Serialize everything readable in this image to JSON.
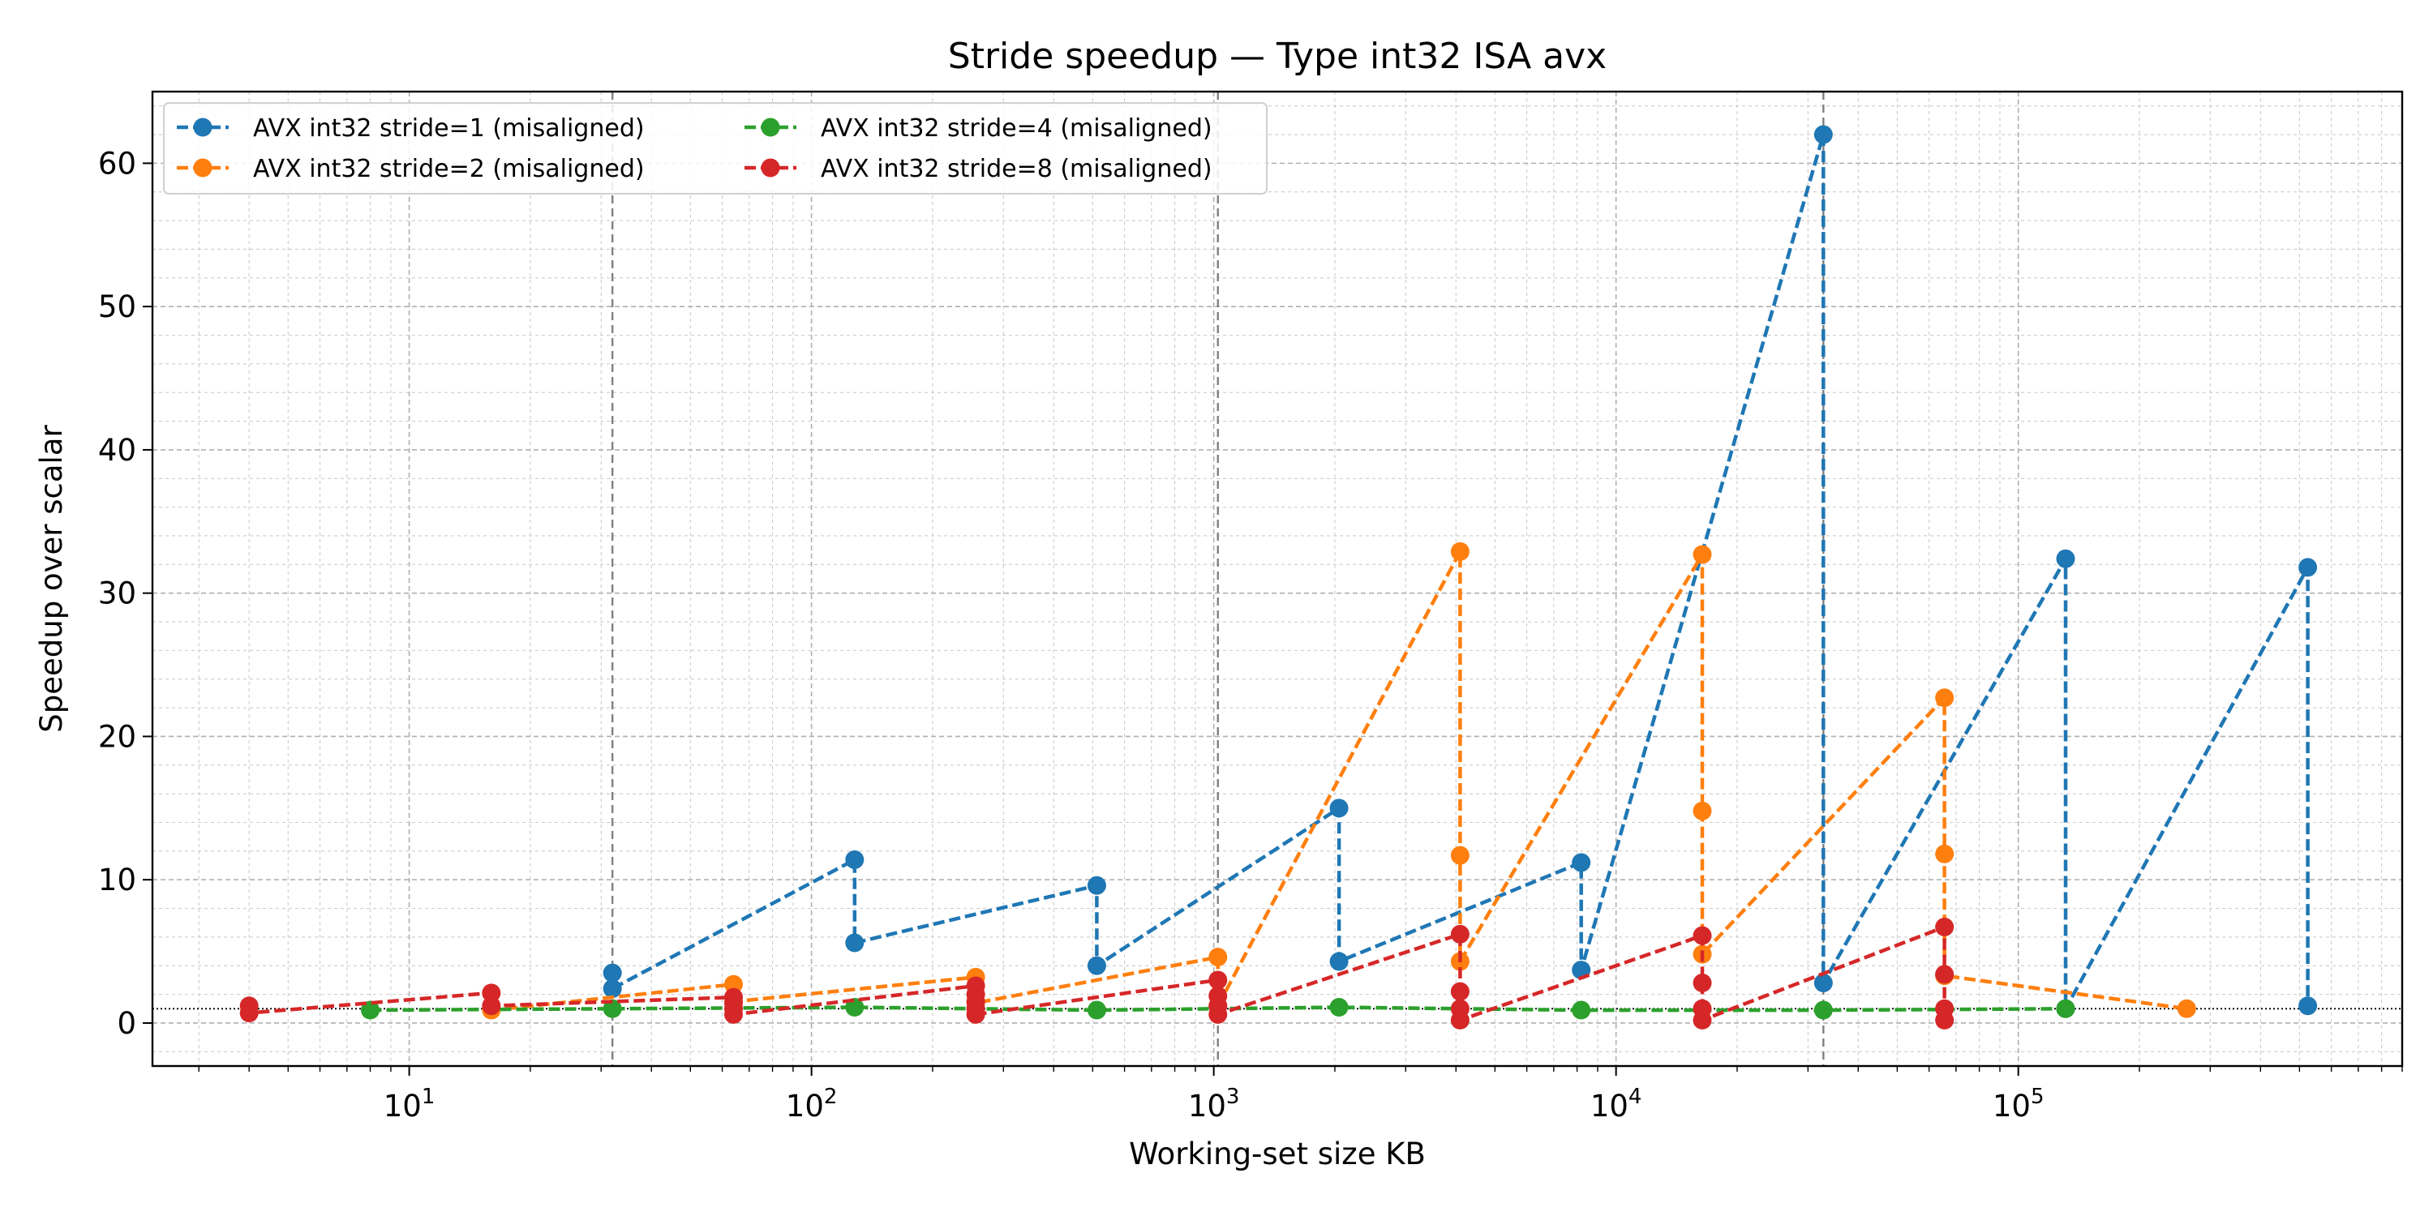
{
  "chart_data": {
    "type": "line",
    "title": "Stride speedup — Type int32 ISA avx",
    "xlabel": "Working-set size KB",
    "ylabel": "Speedup over scalar",
    "xscale": "log",
    "xlim": [
      2.3,
      900000
    ],
    "ylim": [
      -3,
      65
    ],
    "x_ticks": [
      {
        "value": 10,
        "base": "10",
        "exp": "1"
      },
      {
        "value": 100,
        "base": "10",
        "exp": "2"
      },
      {
        "value": 1000,
        "base": "10",
        "exp": "3"
      },
      {
        "value": 10000,
        "base": "10",
        "exp": "4"
      },
      {
        "value": 100000,
        "base": "10",
        "exp": "5"
      }
    ],
    "y_ticks": [
      0,
      10,
      20,
      30,
      40,
      50,
      60
    ],
    "grid": true,
    "legend_position": "upper-left",
    "reference_vlines": [
      32,
      1024,
      32768
    ],
    "baseline_y": 1,
    "series": [
      {
        "name": "AVX int32 stride=1 (misaligned)",
        "color": "#1f77b4",
        "points": [
          [
            32,
            3.5
          ],
          [
            32,
            2.4
          ],
          [
            128,
            11.4
          ],
          [
            128,
            5.6
          ],
          [
            512,
            9.6
          ],
          [
            512,
            4.0
          ],
          [
            2048,
            15.0
          ],
          [
            2048,
            4.3
          ],
          [
            8192,
            11.2
          ],
          [
            8192,
            3.7
          ],
          [
            32768,
            62.0
          ],
          [
            32768,
            2.8
          ],
          [
            131072,
            32.4
          ],
          [
            131072,
            1.0
          ],
          [
            524288,
            31.8
          ],
          [
            524288,
            1.2
          ]
        ]
      },
      {
        "name": "AVX int32 stride=2 (misaligned)",
        "color": "#ff7f0e",
        "points": [
          [
            16,
            1.0
          ],
          [
            16,
            0.9
          ],
          [
            64,
            2.7
          ],
          [
            64,
            1.5
          ],
          [
            256,
            3.2
          ],
          [
            256,
            1.4
          ],
          [
            1024,
            4.6
          ],
          [
            1024,
            1.2
          ],
          [
            4096,
            32.9
          ],
          [
            4096,
            11.7
          ],
          [
            4096,
            4.3
          ],
          [
            16384,
            32.7
          ],
          [
            16384,
            14.8
          ],
          [
            16384,
            4.8
          ],
          [
            65536,
            22.7
          ],
          [
            65536,
            11.8
          ],
          [
            65536,
            3.3
          ],
          [
            262144,
            1.0
          ]
        ]
      },
      {
        "name": "AVX int32 stride=4 (misaligned)",
        "color": "#2ca02c",
        "points": [
          [
            8,
            0.9
          ],
          [
            32,
            1.0
          ],
          [
            128,
            1.1
          ],
          [
            512,
            0.9
          ],
          [
            2048,
            1.1
          ],
          [
            8192,
            0.9
          ],
          [
            32768,
            0.9
          ],
          [
            131072,
            1.0
          ]
        ]
      },
      {
        "name": "AVX int32 stride=8 (misaligned)",
        "color": "#d62728",
        "points": [
          [
            4,
            1.2
          ],
          [
            4,
            0.7
          ],
          [
            16,
            2.1
          ],
          [
            16,
            1.2
          ],
          [
            64,
            1.8
          ],
          [
            64,
            1.4
          ],
          [
            64,
            1.0
          ],
          [
            64,
            0.6
          ],
          [
            256,
            2.6
          ],
          [
            256,
            2.0
          ],
          [
            256,
            1.5
          ],
          [
            256,
            1.0
          ],
          [
            256,
            0.6
          ],
          [
            1024,
            3.0
          ],
          [
            1024,
            1.9
          ],
          [
            1024,
            1.2
          ],
          [
            1024,
            0.6
          ],
          [
            4096,
            6.2
          ],
          [
            4096,
            2.2
          ],
          [
            4096,
            1.0
          ],
          [
            4096,
            0.2
          ],
          [
            16384,
            6.1
          ],
          [
            16384,
            2.8
          ],
          [
            16384,
            1.0
          ],
          [
            16384,
            0.2
          ],
          [
            65536,
            6.7
          ],
          [
            65536,
            3.4
          ],
          [
            65536,
            1.0
          ],
          [
            65536,
            0.2
          ]
        ]
      }
    ]
  }
}
